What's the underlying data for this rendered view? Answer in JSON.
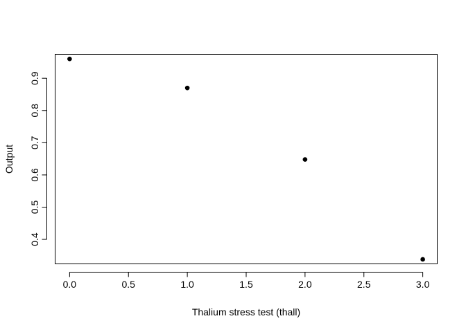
{
  "chart_data": {
    "type": "scatter",
    "title": "",
    "xlabel": "Thalium stress test (thall)",
    "ylabel": "Output",
    "xlim": [
      -0.12,
      3.12
    ],
    "ylim": [
      0.325,
      0.9755
    ],
    "x_ticks": [
      "0.0",
      "0.5",
      "1.0",
      "1.5",
      "2.0",
      "2.5",
      "3.0"
    ],
    "x_tick_values": [
      0,
      0.5,
      1,
      1.5,
      2,
      2.5,
      3
    ],
    "y_ticks": [
      "0.4",
      "0.5",
      "0.6",
      "0.7",
      "0.8",
      "0.9"
    ],
    "y_tick_values": [
      0.4,
      0.5,
      0.6,
      0.7,
      0.8,
      0.9
    ],
    "series": [
      {
        "x": [
          0,
          1,
          2,
          3
        ],
        "y": [
          0.96,
          0.87,
          0.648,
          0.338
        ]
      }
    ],
    "grid": false,
    "legend": "none",
    "colors": {
      "points": "#000000",
      "axes": "#000000"
    }
  }
}
